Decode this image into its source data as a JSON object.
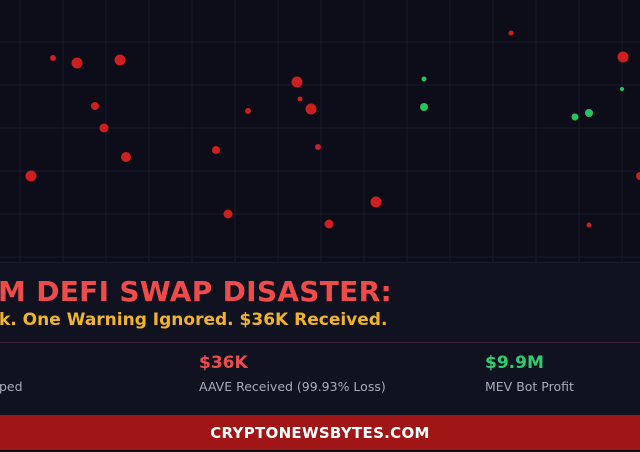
{
  "background_chart": {
    "colors": {
      "loss": "#cc1f1f",
      "profit": "#22c55e",
      "grid": "#1a1b2a"
    }
  },
  "headline": {
    "title": "M DEFI SWAP DISASTER:",
    "subtitle": "k. One Warning Ignored. $36K Received."
  },
  "stats": [
    {
      "value": "",
      "label": "ped",
      "color": "#f04b4b"
    },
    {
      "value": "$36K",
      "label": "AAVE Received (99.93% Loss)",
      "color": "#f04b4b"
    },
    {
      "value": "$9.9M",
      "label": "MEV Bot Profit",
      "color": "#2ecc71"
    }
  ],
  "footer": {
    "site": "CRYPTONEWSBYTES.COM",
    "color": "#a01515"
  }
}
